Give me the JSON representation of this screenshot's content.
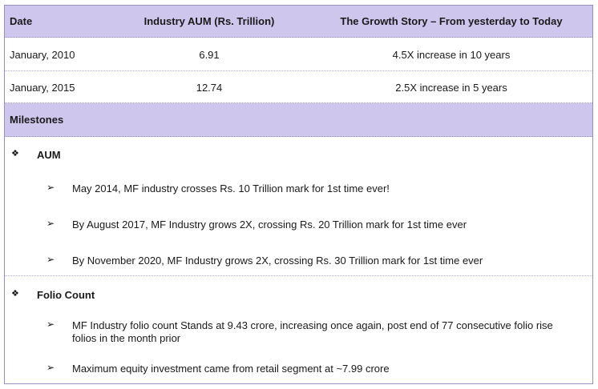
{
  "table": {
    "headers": [
      "Date",
      "Industry AUM (Rs. Trillion)",
      "The Growth Story – From yesterday to Today"
    ],
    "rows": [
      {
        "date": "January, 2010",
        "aum": "6.91",
        "growth": "4.5X increase in 10 years"
      },
      {
        "date": "January, 2015",
        "aum": "12.74",
        "growth": "2.5X increase in 5 years"
      }
    ],
    "milestones_label": "Milestones"
  },
  "sections": [
    {
      "title": "AUM",
      "marker": "❖",
      "items": [
        {
          "text": "May 2014, MF industry crosses Rs. 10 Trillion mark for 1st time ever!"
        },
        {
          "text": "By August 2017, MF Industry grows 2X, crossing Rs. 20 Trillion mark for 1st time ever"
        },
        {
          "text": "By November 2020, MF Industry grows 2X, crossing Rs. 30 Trillion mark for 1st time ever"
        }
      ]
    },
    {
      "title": "Folio Count",
      "marker": "❖",
      "items": [
        {
          "line1": "MF Industry folio count Stands at 9.43 crore, increasing once again, post end of 77 consecutive folio rise",
          "line2": "folios in the month prior"
        },
        {
          "text": "Maximum equity investment came from retail segment at ~7.99 crore"
        }
      ]
    }
  ],
  "bullet_arrow": "➢",
  "colors": {
    "header_bg": "#cfc6ee",
    "border": "#9a8fc4"
  }
}
